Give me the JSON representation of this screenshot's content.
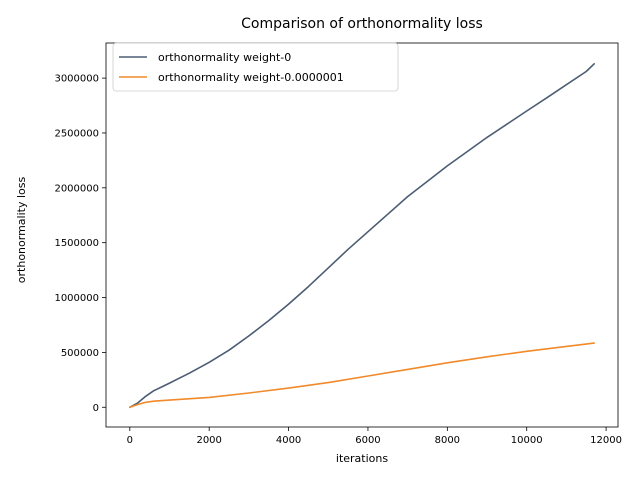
{
  "chart_data": {
    "type": "line",
    "title": "Comparison of orthonormality loss",
    "xlabel": "iterations",
    "ylabel": "orthonormality loss",
    "xlim": [
      -600,
      12300
    ],
    "ylim": [
      -180000,
      3320000
    ],
    "xticks": [
      0,
      2000,
      4000,
      6000,
      8000,
      10000,
      12000
    ],
    "yticks": [
      0,
      500000,
      1000000,
      1500000,
      2000000,
      2500000,
      3000000
    ],
    "grid": false,
    "legend_position": "top-left",
    "series": [
      {
        "name": "orthonormality weight-0",
        "color": "#4c5d73",
        "x": [
          0,
          200,
          400,
          600,
          800,
          1000,
          1500,
          2000,
          2500,
          3000,
          3500,
          4000,
          4500,
          5000,
          5500,
          6000,
          6500,
          7000,
          7500,
          8000,
          8500,
          9000,
          9500,
          10000,
          10500,
          11000,
          11500,
          11700
        ],
        "y": [
          0,
          40000,
          100000,
          150000,
          185000,
          220000,
          310000,
          410000,
          520000,
          650000,
          790000,
          940000,
          1100000,
          1270000,
          1440000,
          1600000,
          1760000,
          1920000,
          2060000,
          2200000,
          2330000,
          2460000,
          2580000,
          2700000,
          2820000,
          2940000,
          3060000,
          3130000
        ]
      },
      {
        "name": "orthonormality weight-0.0000001",
        "color": "#f08a2a",
        "x": [
          0,
          200,
          400,
          600,
          1000,
          2000,
          3000,
          4000,
          5000,
          6000,
          7000,
          8000,
          9000,
          10000,
          11000,
          11700
        ],
        "y": [
          0,
          25000,
          45000,
          55000,
          65000,
          90000,
          130000,
          175000,
          225000,
          285000,
          345000,
          405000,
          460000,
          510000,
          555000,
          585000
        ]
      }
    ]
  }
}
